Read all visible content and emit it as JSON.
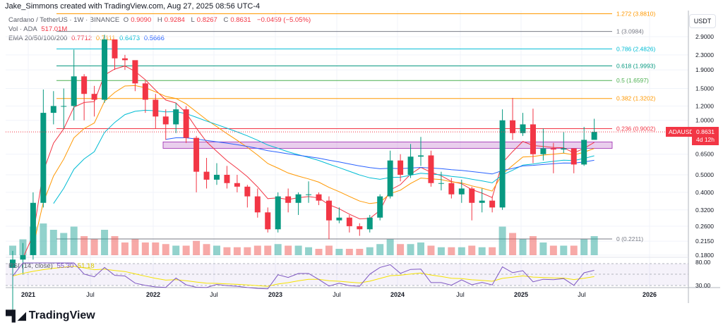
{
  "header": {
    "credit": "Jake_Simmons created with TradingView.com, Aug 27, 2025 08:56 UTC-4"
  },
  "legend": {
    "symbol": "Cardano / TetherUS · 1W · BINANCE",
    "o_label": "O",
    "o": "0.9090",
    "h_label": "H",
    "h": "0.9284",
    "l_label": "L",
    "l": "0.8267",
    "c_label": "C",
    "c": "0.8631",
    "change": "−0.0459 (−5.05%)",
    "vol_label": "Vol · ADA",
    "vol": "517.01M",
    "ema_label": "EMA 20/50/100/200",
    "ema20": "0.7712",
    "ema50": "0.7111",
    "ema100": "0.6473",
    "ema200": "0.5666",
    "rsi_label": "RSI (14, close)",
    "rsi": "55.30",
    "rsi_ma": "51.18"
  },
  "price_axis": {
    "currency": "USDT",
    "ticks": [
      "2.9000",
      "2.3000",
      "1.9000",
      "1.5000",
      "1.2000",
      "1.0000",
      "0.6500",
      "0.5000",
      "0.4000",
      "0.3200",
      "0.2600",
      "0.2150",
      "0.1800"
    ],
    "rsi_ticks": [
      "80.00",
      "30.00"
    ]
  },
  "time_axis": {
    "ticks": [
      "2021",
      "Jul",
      "2022",
      "Jul",
      "2023",
      "Jul",
      "2024",
      "Jul",
      "2025",
      "Jul",
      "2026"
    ]
  },
  "current": {
    "symbol": "ADAUSDT",
    "price": "0.8631",
    "countdown": "4d 12h",
    "color": "#f23645"
  },
  "fib_levels": [
    {
      "label": "1.272 (3.8810)",
      "price": 3.881,
      "color": "#ff9800"
    },
    {
      "label": "1 (3.0984)",
      "price": 3.0984,
      "color": "#787b86"
    },
    {
      "label": "0.786 (2.4826)",
      "price": 2.4826,
      "color": "#00bcd4"
    },
    {
      "label": "0.618 (1.9993)",
      "price": 1.9993,
      "color": "#089981"
    },
    {
      "label": "0.5 (1.6597)",
      "price": 1.6597,
      "color": "#4caf50"
    },
    {
      "label": "0.382 (1.3202)",
      "price": 1.3202,
      "color": "#ff9800"
    },
    {
      "label": "0.236 (0.9002)",
      "price": 0.9002,
      "color": "#f23645"
    },
    {
      "label": "0 (0.2211)",
      "price": 0.2211,
      "color": "#787b86"
    }
  ],
  "zone": {
    "low": 0.7,
    "high": 0.76,
    "color": "#ce93d8"
  },
  "footer": {
    "brand": "TradingView"
  },
  "chart_data": {
    "type": "candlestick",
    "scale": "log",
    "ylim": [
      0.18,
      2.95
    ],
    "interval": "monthly approximation of weekly candles",
    "start": "2020-11",
    "closes": [
      0.17,
      0.18,
      0.35,
      1.1,
      1.2,
      1.2,
      1.75,
      1.4,
      1.3,
      2.8,
      2.2,
      2.15,
      1.6,
      1.3,
      1.05,
      0.95,
      1.15,
      0.8,
      0.52,
      0.47,
      0.5,
      0.45,
      0.43,
      0.38,
      0.31,
      0.25,
      0.38,
      0.35,
      0.39,
      0.39,
      0.36,
      0.28,
      0.29,
      0.26,
      0.25,
      0.29,
      0.38,
      0.6,
      0.5,
      0.63,
      0.64,
      0.45,
      0.45,
      0.39,
      0.42,
      0.35,
      0.36,
      0.33,
      1.0,
      0.85,
      0.95,
      0.65,
      0.7,
      0.69,
      0.7,
      0.57,
      0.78,
      0.8631
    ],
    "highs": [
      0.19,
      0.21,
      0.4,
      1.48,
      1.45,
      1.5,
      2.46,
      1.8,
      1.55,
      2.97,
      2.5,
      2.3,
      2.1,
      1.65,
      1.4,
      1.15,
      1.25,
      1.2,
      0.82,
      0.62,
      0.58,
      0.56,
      0.5,
      0.44,
      0.42,
      0.33,
      0.4,
      0.42,
      0.4,
      0.46,
      0.4,
      0.38,
      0.33,
      0.3,
      0.27,
      0.3,
      0.39,
      0.68,
      0.65,
      0.74,
      0.81,
      0.68,
      0.52,
      0.48,
      0.47,
      0.43,
      0.42,
      0.38,
      1.15,
      1.33,
      1.1,
      1.16,
      0.9,
      0.75,
      0.86,
      0.7,
      0.92,
      1.02
    ],
    "lows": [
      0.09,
      0.14,
      0.17,
      0.33,
      0.95,
      0.9,
      1.0,
      1.0,
      1.05,
      1.25,
      1.9,
      1.9,
      1.45,
      1.1,
      0.9,
      0.78,
      0.85,
      0.75,
      0.4,
      0.42,
      0.44,
      0.42,
      0.4,
      0.33,
      0.29,
      0.24,
      0.24,
      0.31,
      0.3,
      0.35,
      0.34,
      0.22,
      0.27,
      0.24,
      0.23,
      0.24,
      0.28,
      0.37,
      0.46,
      0.48,
      0.56,
      0.43,
      0.41,
      0.37,
      0.35,
      0.28,
      0.31,
      0.31,
      0.32,
      0.78,
      0.82,
      0.58,
      0.6,
      0.51,
      0.66,
      0.51,
      0.56,
      0.83
    ],
    "volume_relative": [
      0.3,
      0.5,
      0.9,
      1.0,
      0.8,
      0.7,
      0.9,
      0.6,
      0.5,
      0.8,
      0.6,
      0.4,
      0.5,
      0.4,
      0.4,
      0.35,
      0.3,
      0.3,
      0.45,
      0.35,
      0.3,
      0.25,
      0.25,
      0.25,
      0.3,
      0.3,
      0.35,
      0.3,
      0.3,
      0.25,
      0.2,
      0.3,
      0.2,
      0.2,
      0.2,
      0.25,
      0.35,
      0.5,
      0.35,
      0.35,
      0.4,
      0.3,
      0.25,
      0.25,
      0.25,
      0.3,
      0.25,
      0.25,
      0.9,
      0.7,
      0.5,
      0.6,
      0.4,
      0.3,
      0.3,
      0.3,
      0.5,
      0.6
    ],
    "ema_colors": {
      "ema20": "#f23645",
      "ema50": "#ff9800",
      "ema100": "#00bcd4",
      "ema200": "#2962ff"
    },
    "up_color": "#089981",
    "down_color": "#f23645"
  }
}
